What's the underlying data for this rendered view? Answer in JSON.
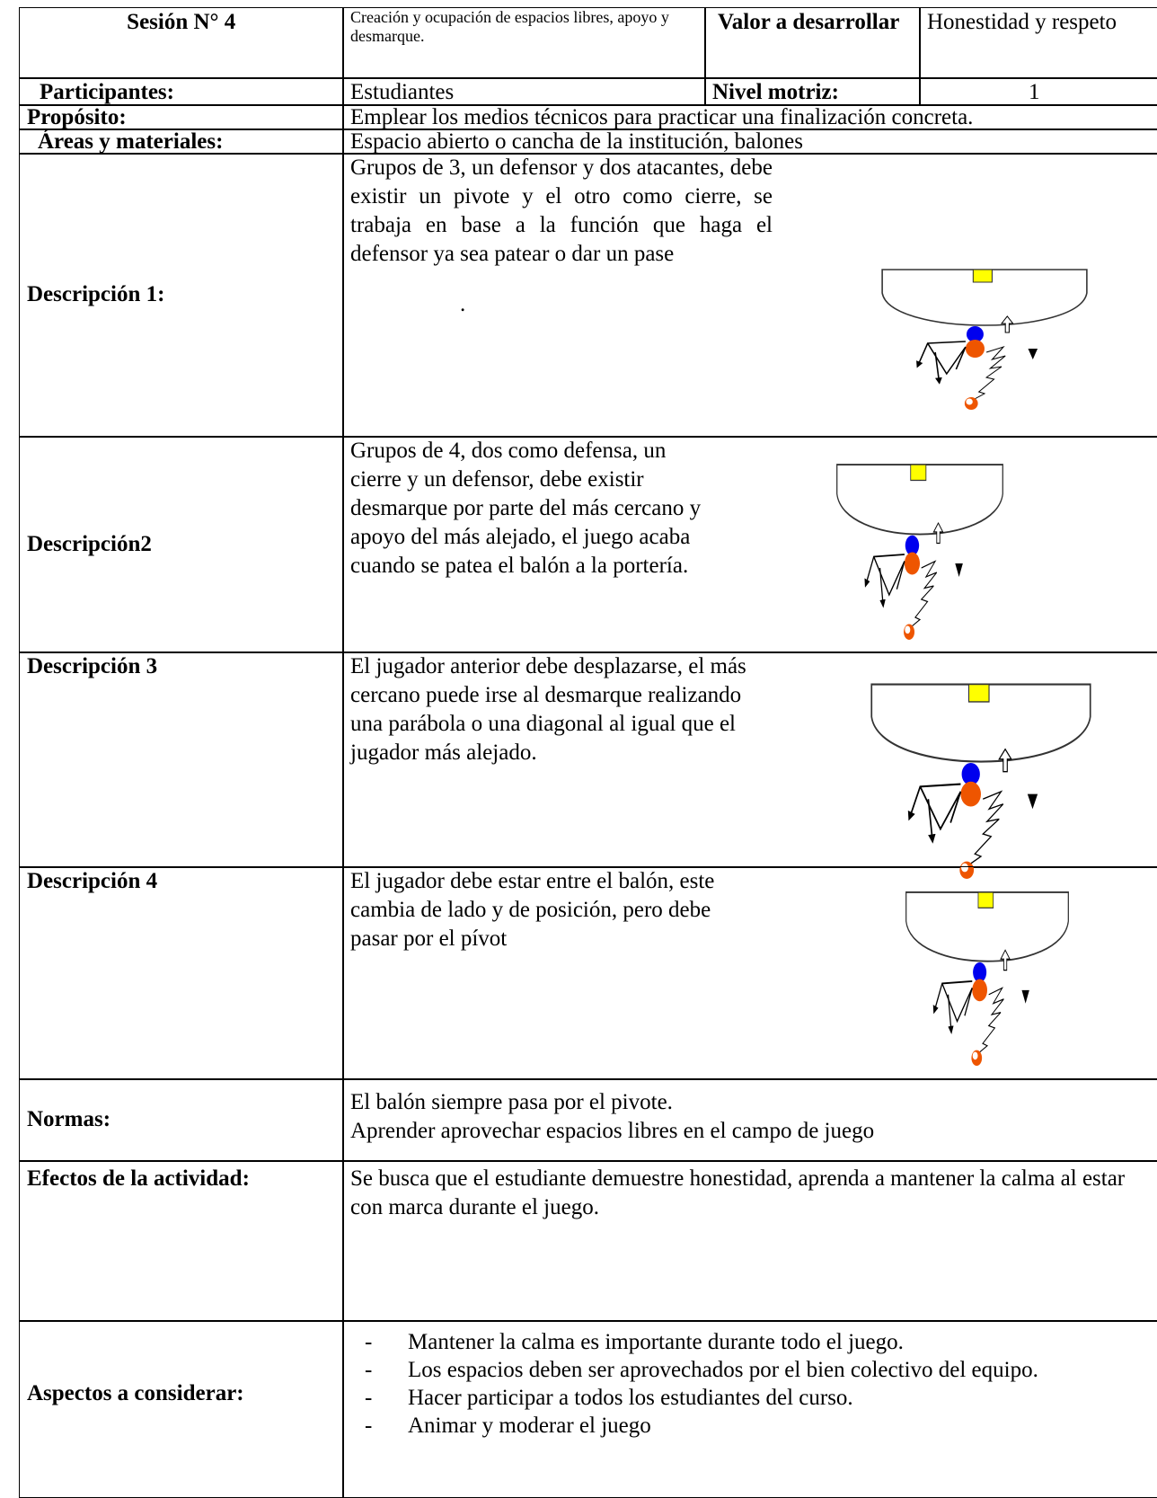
{
  "header": {
    "session": "Sesión N° 4",
    "topic": "Creación y ocupación de espacios libres, apoyo y desmarque.",
    "value_label": "Valor a desarrollar",
    "value": "Honestidad y respeto",
    "participants_label": "Participantes:",
    "participants": "Estudiantes",
    "level_label": "Nivel motriz:",
    "level": "1"
  },
  "purpose": {
    "label": "Propósito:",
    "text": "Emplear los medios técnicos para practicar una finalización concreta."
  },
  "areas": {
    "label": "Áreas y materiales:",
    "text": "Espacio abierto o cancha de la institución, balones"
  },
  "descriptions": [
    {
      "label": "Descripción 1:",
      "text": "Grupos de 3, un defensor y dos atacantes, debe existir un pivote y el otro como cierre, se trabaja en base a la función que haga el defensor ya sea patear o dar un pase",
      "note": "."
    },
    {
      "label": "Descripción2",
      "text": "Grupos de 4, dos como defensa, un cierre y un defensor, debe existir desmarque por parte del más cercano y apoyo del más alejado, el juego acaba cuando se patea el balón a la portería."
    },
    {
      "label": "Descripción 3",
      "text": "El jugador anterior debe desplazarse, el más cercano puede irse al desmarque realizando una parábola o una diagonal al igual que el jugador más alejado."
    },
    {
      "label": "Descripción 4",
      "text": "El jugador debe estar entre el balón, este cambia de lado y de posición, pero debe pasar por el pívot"
    }
  ],
  "norms": {
    "label": "Normas:",
    "lines": [
      "El balón siempre pasa por el pivote.",
      "Aprender aprovechar espacios libres en el campo de juego"
    ]
  },
  "effects": {
    "label": "Efectos de la actividad:",
    "text": "Se busca que el estudiante demuestre honestidad, aprenda a mantener la calma al estar con marca durante el juego."
  },
  "aspects": {
    "label": "Aspectos a considerar:",
    "items": [
      "Mantener la calma es importante durante todo el juego.",
      "Los espacios deben ser aprovechados por el bien colectivo del equipo.",
      "Hacer participar a todos los estudiantes del curso.",
      "Animar y moderar el juego"
    ]
  }
}
